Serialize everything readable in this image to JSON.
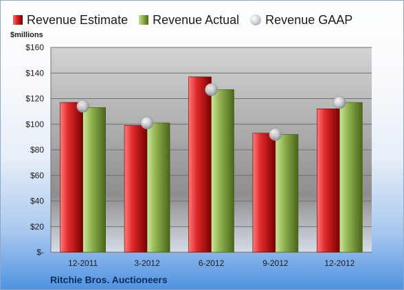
{
  "legend": {
    "estimate": "Revenue Estimate",
    "actual": "Revenue Actual",
    "gaap": "Revenue GAAP"
  },
  "unit_label": "$millions",
  "company": "Ritchie Bros. Auctioneers",
  "colors": {
    "estimate": "#d91f1f",
    "actual": "#8db04c",
    "gaap": "#c8ccd2"
  },
  "chart_data": {
    "type": "bar",
    "title": "",
    "xlabel": "",
    "ylabel": "$millions",
    "categories": [
      "12-2011",
      "3-2012",
      "6-2012",
      "9-2012",
      "12-2012"
    ],
    "series": [
      {
        "name": "Revenue Estimate",
        "values": [
          117,
          99,
          137,
          93,
          112
        ]
      },
      {
        "name": "Revenue Actual",
        "values": [
          113,
          101,
          127,
          92,
          117
        ]
      },
      {
        "name": "Revenue GAAP",
        "values": [
          114,
          101,
          127,
          92,
          117
        ],
        "marker": "circle"
      }
    ],
    "ylim": [
      0,
      160
    ],
    "yticks": [
      0,
      20,
      40,
      60,
      80,
      100,
      120,
      140,
      160
    ],
    "ytick_labels": [
      "$-",
      "$20",
      "$40",
      "$60",
      "$80",
      "$100",
      "$120",
      "$140",
      "$160"
    ],
    "grid": true,
    "legend_position": "top"
  }
}
